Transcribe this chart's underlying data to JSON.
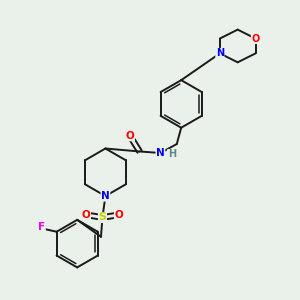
{
  "bg_color": "#eaf0ea",
  "bond_color": "#1a1a1a",
  "atom_colors": {
    "O": "#ff0000",
    "N": "#0000ff",
    "N_teal": "#4a9090",
    "F": "#ee00ee",
    "S": "#cccc00",
    "H": "#5a8a8a"
  }
}
